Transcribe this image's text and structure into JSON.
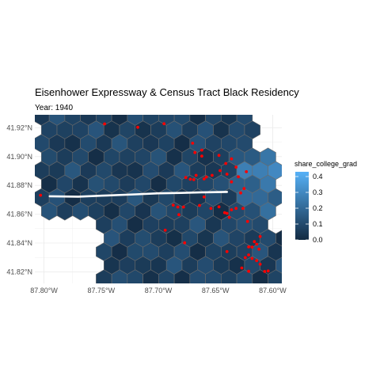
{
  "chart_data": {
    "type": "hexbin-map",
    "title": "Eisenhower Expressway & Census Tract Black Residency",
    "subtitle": "Year: 1940",
    "xlabel": "",
    "ylabel": "",
    "xlim": [
      -87.808,
      -87.592
    ],
    "ylim": [
      41.812,
      41.929
    ],
    "x_ticks": [
      {
        "value": -87.8,
        "label": "87.80°W"
      },
      {
        "value": -87.75,
        "label": "87.75°W"
      },
      {
        "value": -87.7,
        "label": "87.70°W"
      },
      {
        "value": -87.65,
        "label": "87.65°W"
      },
      {
        "value": -87.6,
        "label": "87.60°W"
      }
    ],
    "y_ticks": [
      {
        "value": 41.82,
        "label": "41.82°N"
      },
      {
        "value": 41.84,
        "label": "41.84°N"
      },
      {
        "value": 41.86,
        "label": "41.86°N"
      },
      {
        "value": 41.88,
        "label": "41.88°N"
      },
      {
        "value": 41.9,
        "label": "41.90°N"
      },
      {
        "value": 41.92,
        "label": "41.92°N"
      }
    ],
    "grid": true,
    "fill_variable": "share_college_grad",
    "fill_range": [
      0,
      0.43
    ],
    "legend": {
      "title": "share_college_grad",
      "placement": "right",
      "breaks": [
        {
          "value": 0.0,
          "label": "0.0"
        },
        {
          "value": 0.1,
          "label": "0.1"
        },
        {
          "value": 0.2,
          "label": "0.2"
        },
        {
          "value": 0.3,
          "label": "0.3"
        },
        {
          "value": 0.4,
          "label": "0.4"
        }
      ]
    },
    "colors": {
      "low": "#132b43",
      "high": "#56b1f7",
      "hex_border": "#6b6b6b",
      "points": "#ff0000",
      "expressway": "#ffffff",
      "grid": "#ebebeb"
    },
    "expressway": [
      [
        -87.795,
        41.8725
      ],
      [
        -87.77,
        41.8722
      ],
      [
        -87.745,
        41.873
      ],
      [
        -87.72,
        41.8738
      ],
      [
        -87.7,
        41.8745
      ],
      [
        -87.68,
        41.8748
      ],
      [
        -87.66,
        41.8752
      ],
      [
        -87.64,
        41.8755
      ]
    ],
    "points": [
      [
        -87.803,
        41.8732
      ],
      [
        -87.747,
        41.9227
      ],
      [
        -87.718,
        41.9203
      ],
      [
        -87.695,
        41.9228
      ],
      [
        -87.67,
        41.9093
      ],
      [
        -87.668,
        41.9028
      ],
      [
        -87.662,
        41.9045
      ],
      [
        -87.662,
        41.9003
      ],
      [
        -87.647,
        41.9008
      ],
      [
        -87.641,
        41.8952
      ],
      [
        -87.636,
        41.8984
      ],
      [
        -87.632,
        41.8927
      ],
      [
        -87.667,
        41.887
      ],
      [
        -87.669,
        41.884
      ],
      [
        -87.66,
        41.8845
      ],
      [
        -87.658,
        41.8858
      ],
      [
        -87.653,
        41.887
      ],
      [
        -87.646,
        41.8903
      ],
      [
        -87.64,
        41.8878
      ],
      [
        -87.623,
        41.8895
      ],
      [
        -87.63,
        41.886
      ],
      [
        -87.636,
        41.8825
      ],
      [
        -87.676,
        41.8855
      ],
      [
        -87.672,
        41.8843
      ],
      [
        -87.625,
        41.8778
      ],
      [
        -87.628,
        41.8748
      ],
      [
        -87.66,
        41.872
      ],
      [
        -87.664,
        41.8661
      ],
      [
        -87.654,
        41.864
      ],
      [
        -87.647,
        41.8651
      ],
      [
        -87.642,
        41.8611
      ],
      [
        -87.64,
        41.8606
      ],
      [
        -87.636,
        41.8631
      ],
      [
        -87.632,
        41.8641
      ],
      [
        -87.626,
        41.864
      ],
      [
        -87.638,
        41.8578
      ],
      [
        -87.622,
        41.855
      ],
      [
        -87.611,
        41.8445
      ],
      [
        -87.616,
        41.841
      ],
      [
        -87.618,
        41.8372
      ],
      [
        -87.614,
        41.8392
      ],
      [
        -87.612,
        41.8358
      ],
      [
        -87.621,
        41.8373
      ],
      [
        -87.621,
        41.8318
      ],
      [
        -87.624,
        41.8299
      ],
      [
        -87.618,
        41.8293
      ],
      [
        -87.614,
        41.8278
      ],
      [
        -87.611,
        41.8253
      ],
      [
        -87.627,
        41.8227
      ],
      [
        -87.621,
        41.8204
      ],
      [
        -87.64,
        41.8341
      ],
      [
        -87.677,
        41.8402
      ],
      [
        -87.694,
        41.8489
      ],
      [
        -87.683,
        41.865
      ],
      [
        -87.682,
        41.8597
      ],
      [
        -87.678,
        41.865
      ],
      [
        -87.687,
        41.8663
      ],
      [
        -87.607,
        41.8203
      ],
      [
        -87.604,
        41.8206
      ]
    ],
    "hex_fill_values": [
      {
        "x": -87.617,
        "y": 41.889,
        "value": 0.27
      },
      {
        "x": -87.609,
        "y": 41.897,
        "value": 0.24
      },
      {
        "x": -87.609,
        "y": 41.881,
        "value": 0.25
      },
      {
        "x": -87.6,
        "y": 41.889,
        "value": 0.3
      },
      {
        "x": -87.617,
        "y": 41.873,
        "value": 0.2
      },
      {
        "x": -87.609,
        "y": 41.865,
        "value": 0.22
      },
      {
        "x": -87.626,
        "y": 41.897,
        "value": 0.14
      },
      {
        "x": -87.626,
        "y": 41.881,
        "value": 0.17
      },
      {
        "x": -87.617,
        "y": 41.905,
        "value": 0.15
      },
      {
        "x": -87.617,
        "y": 41.857,
        "value": 0.12
      },
      {
        "x": -87.609,
        "y": 41.849,
        "value": 0.1
      },
      {
        "x": -87.6,
        "y": 41.873,
        "value": 0.16
      },
      {
        "x": -87.592,
        "y": 41.881,
        "value": 0.18
      },
      {
        "x": -87.626,
        "y": 41.913,
        "value": 0.1
      }
    ]
  }
}
